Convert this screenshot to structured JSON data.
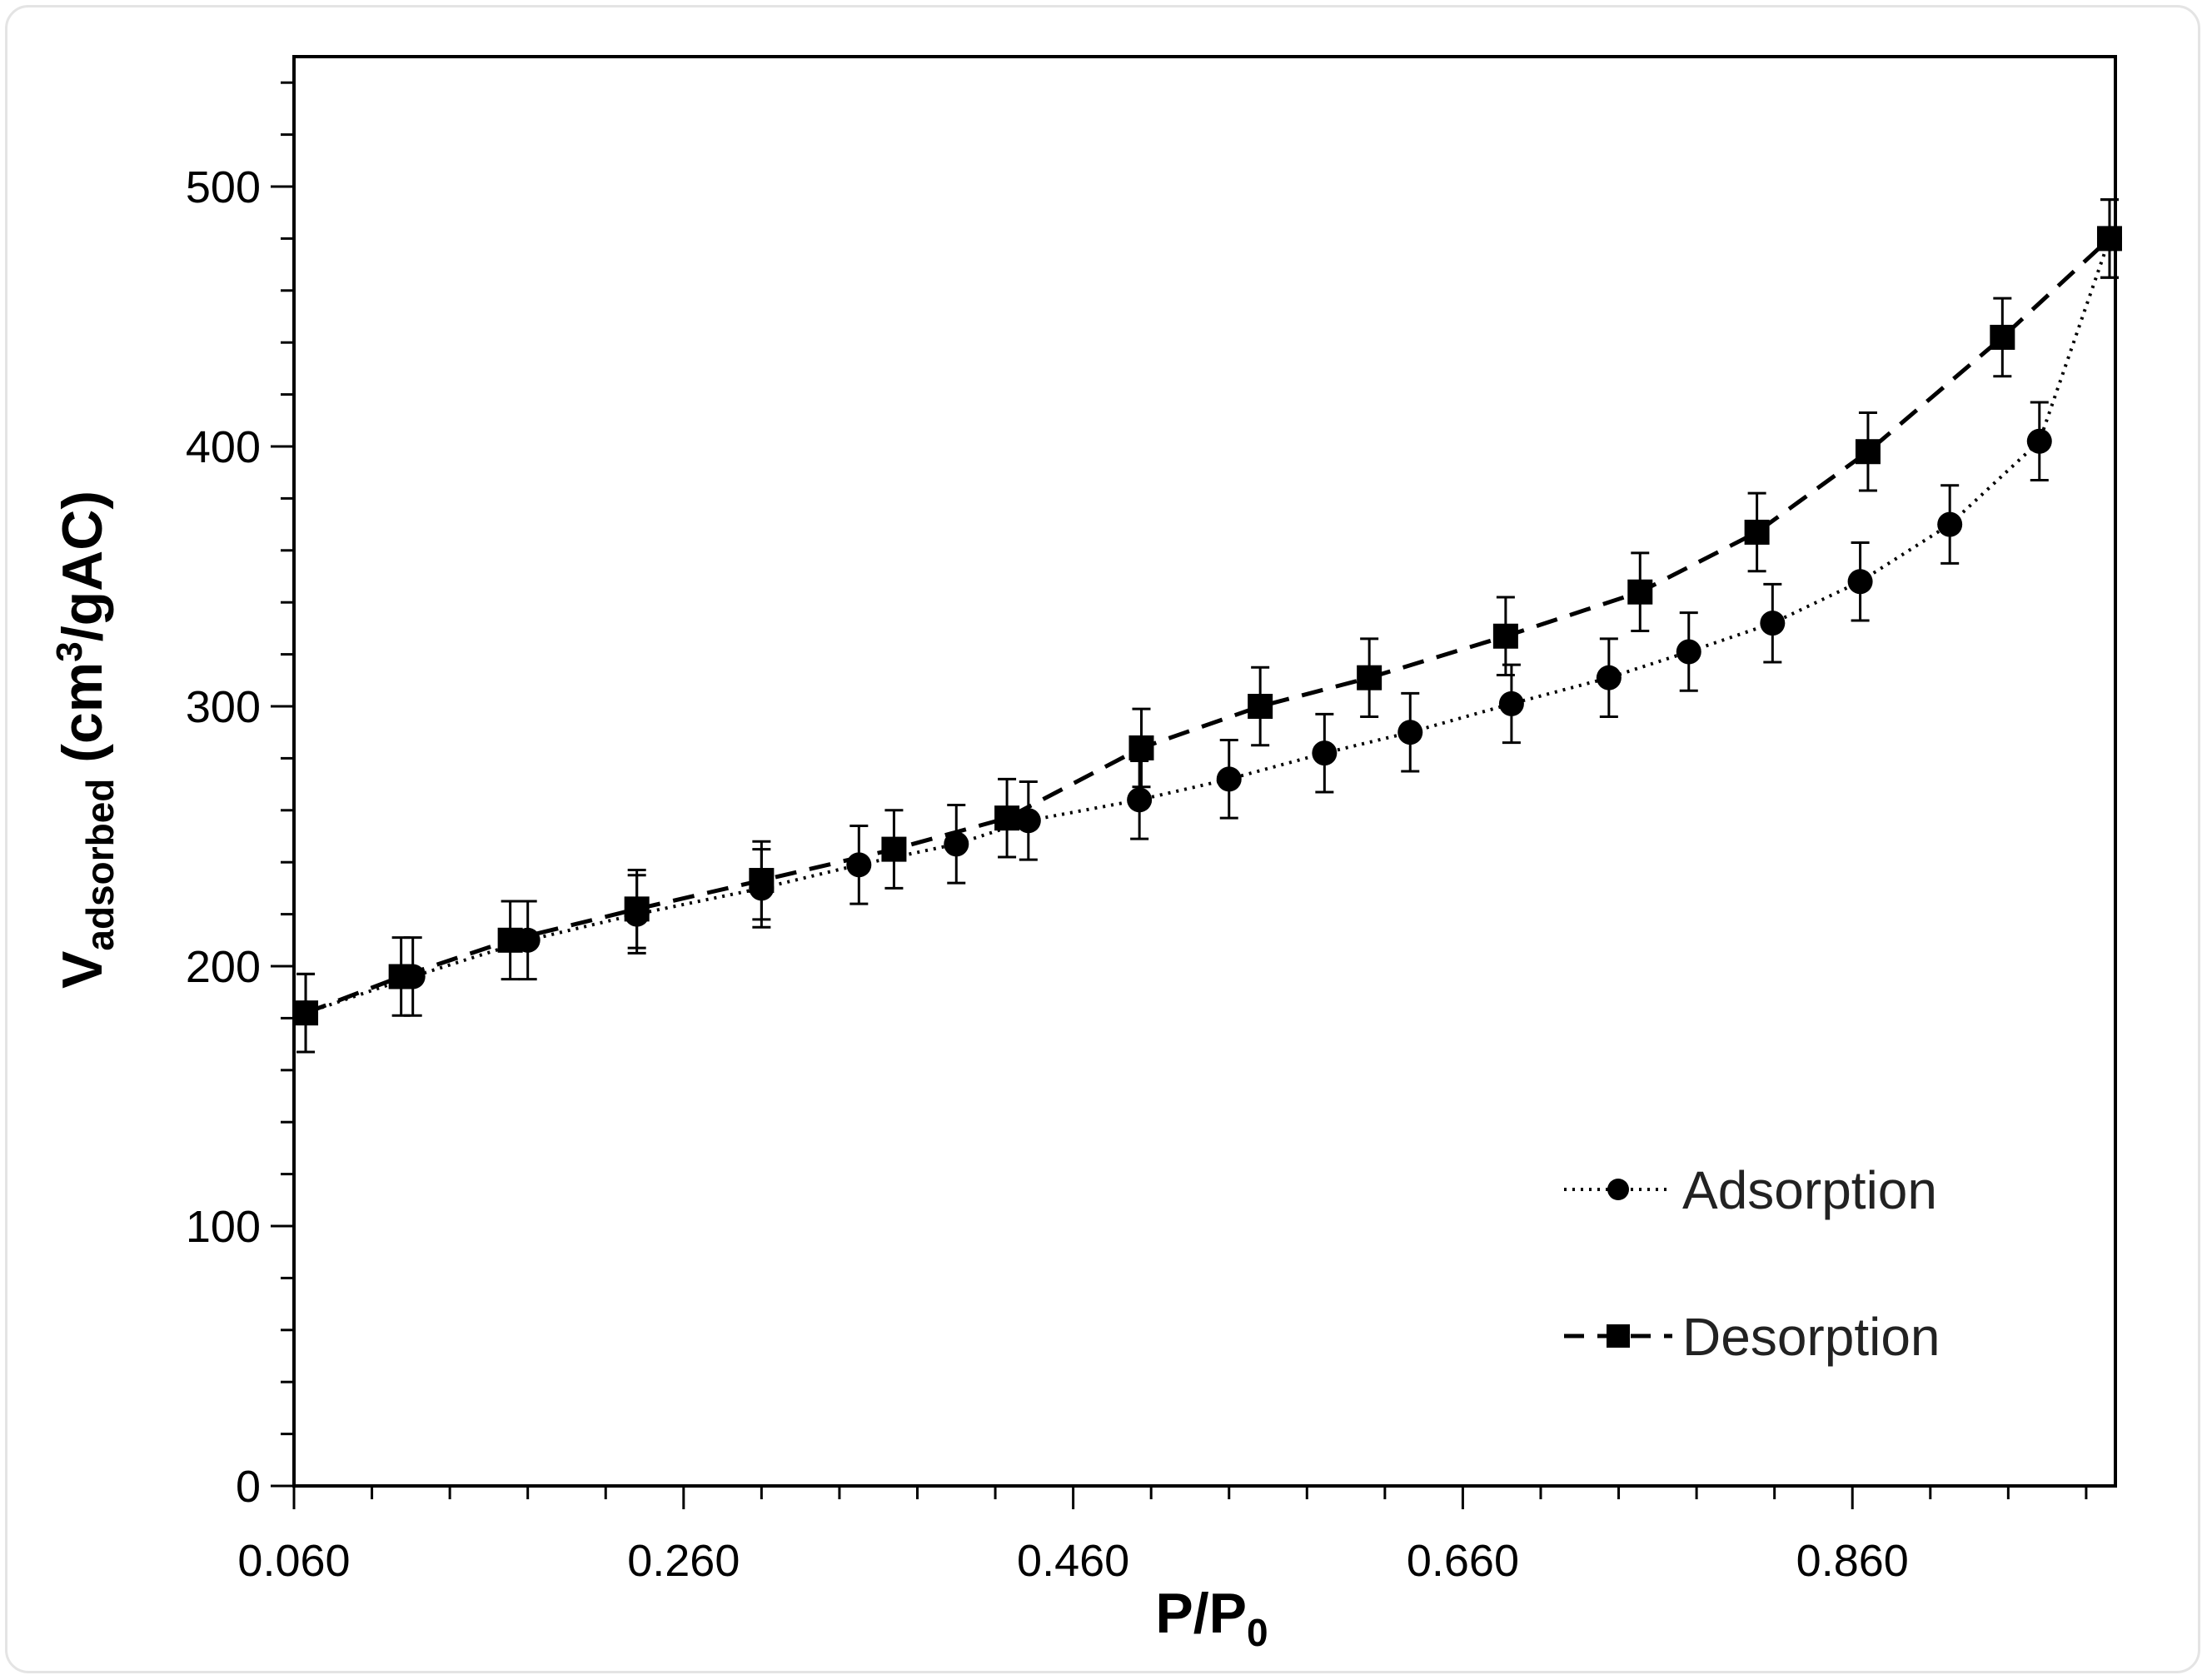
{
  "chart_data": {
    "type": "line",
    "xlabel_main": "P/P",
    "xlabel_sub": "0",
    "ylabel_main": "V",
    "ylabel_sub": "adsorbed",
    "ylabel_unit": " (cm",
    "ylabel_sup": "3",
    "ylabel_tail": "/gAC)",
    "xlim": [
      0.06,
      0.995
    ],
    "ylim": [
      0,
      550
    ],
    "x_ticks": [
      "0.060",
      "0.260",
      "0.460",
      "0.660",
      "0.860"
    ],
    "y_ticks": [
      "0",
      "100",
      "200",
      "300",
      "400",
      "500"
    ],
    "grid": false,
    "legend_position": "bottom-right",
    "series": [
      {
        "name": "Adsorption",
        "style": "dotted",
        "marker": "circle",
        "color": "#000000",
        "error": 15,
        "x": [
          0.066,
          0.121,
          0.18,
          0.236,
          0.3,
          0.35,
          0.4,
          0.437,
          0.494,
          0.54,
          0.589,
          0.633,
          0.685,
          0.735,
          0.776,
          0.819,
          0.864,
          0.91,
          0.956,
          0.992
        ],
        "y": [
          182,
          196,
          210,
          220,
          230,
          239,
          247,
          256,
          264,
          272,
          282,
          290,
          301,
          311,
          321,
          332,
          348,
          370,
          402,
          480
        ]
      },
      {
        "name": "Desorption",
        "style": "dashed",
        "marker": "square",
        "color": "#000000",
        "error": 15,
        "x": [
          0.066,
          0.115,
          0.171,
          0.236,
          0.3,
          0.368,
          0.426,
          0.495,
          0.556,
          0.612,
          0.682,
          0.751,
          0.811,
          0.868,
          0.937,
          0.992
        ],
        "y": [
          182,
          196,
          210,
          222,
          233,
          245,
          257,
          284,
          300,
          311,
          327,
          344,
          367,
          398,
          442,
          480
        ]
      }
    ]
  }
}
